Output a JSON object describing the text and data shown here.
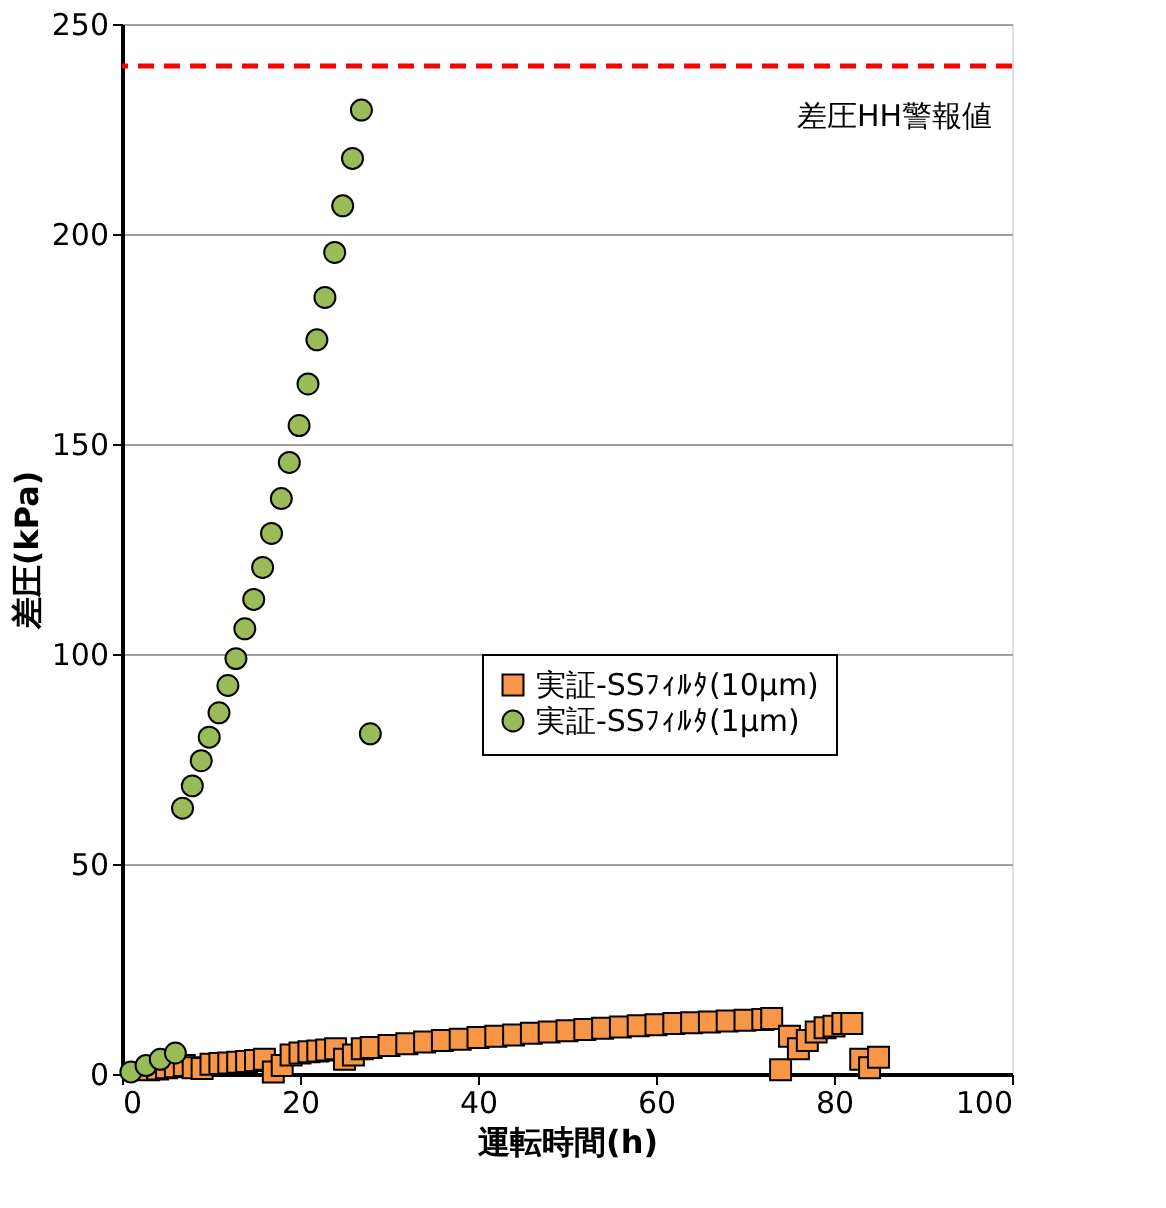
{
  "chart_data": {
    "type": "scatter",
    "xlabel": "運転時間(h)",
    "ylabel": "差圧(kPa)",
    "xlim": [
      0,
      100
    ],
    "xticks": [
      0,
      20,
      40,
      60,
      80,
      100
    ],
    "ylim": [
      0,
      250
    ],
    "yticks": [
      0,
      50,
      100,
      150,
      200,
      250
    ],
    "grid": "y",
    "legend": "right",
    "series": [
      {
        "name": "実証-SSﾌｨﾙﾀ(10μm)",
        "color": "#f79646",
        "marker": "square",
        "x": [
          3,
          4,
          5,
          6,
          7,
          8,
          9,
          10,
          11,
          12,
          13,
          14,
          15,
          16,
          17,
          18,
          19,
          20,
          21,
          22,
          23,
          24,
          25,
          26,
          27,
          28,
          30,
          32,
          34,
          36,
          38,
          40,
          42,
          44,
          46,
          48,
          50,
          52,
          54,
          56,
          58,
          60,
          62,
          64,
          66,
          68,
          70,
          72,
          73,
          74,
          75,
          76,
          77,
          78,
          79,
          80,
          81,
          82,
          83,
          84,
          85
        ],
        "values": [
          1,
          1.2,
          1.5,
          1.7,
          2,
          1.5,
          1.3,
          2.3,
          2.5,
          2.6,
          2.8,
          3,
          3.2,
          3.5,
          0.5,
          2,
          4.5,
          5,
          5.3,
          5.5,
          5.7,
          6,
          3.5,
          4.5,
          6,
          6.3,
          6.8,
          7.2,
          7.6,
          8,
          8.3,
          8.7,
          9,
          9.3,
          9.7,
          10,
          10.3,
          10.6,
          10.9,
          11.2,
          11.5,
          11.7,
          12,
          12.2,
          12.4,
          12.6,
          12.8,
          13,
          13.2,
          1,
          9,
          6,
          8,
          10,
          11,
          11.4,
          12,
          12,
          3.5,
          1.5,
          4
        ]
      },
      {
        "name": "実証-SSﾌｨﾙﾀ(1μm)",
        "color": "#9bbb59",
        "marker": "circle",
        "x": [
          1,
          2.7,
          4.3,
          6,
          6.8,
          7.9,
          8.9,
          9.8,
          10.9,
          11.9,
          12.8,
          13.8,
          14.8,
          15.8,
          16.8,
          17.9,
          18.8,
          19.9,
          20.9,
          21.9,
          22.8,
          23.9,
          24.8,
          25.9,
          26.9,
          27.9
        ],
        "values": [
          0.5,
          2,
          3.5,
          5,
          63.3,
          68.6,
          74.6,
          80.2,
          86,
          92.5,
          98.9,
          106,
          113,
          120.6,
          128.7,
          137,
          145.6,
          154.4,
          164.3,
          174.8,
          184.9,
          195.6,
          206.7,
          218,
          229.5,
          81
        ]
      }
    ],
    "ref_lines": [
      {
        "axis": "y",
        "value": 240,
        "label": "差圧HH警報値",
        "color": "#ff0000",
        "line_style": "dashed"
      }
    ]
  }
}
